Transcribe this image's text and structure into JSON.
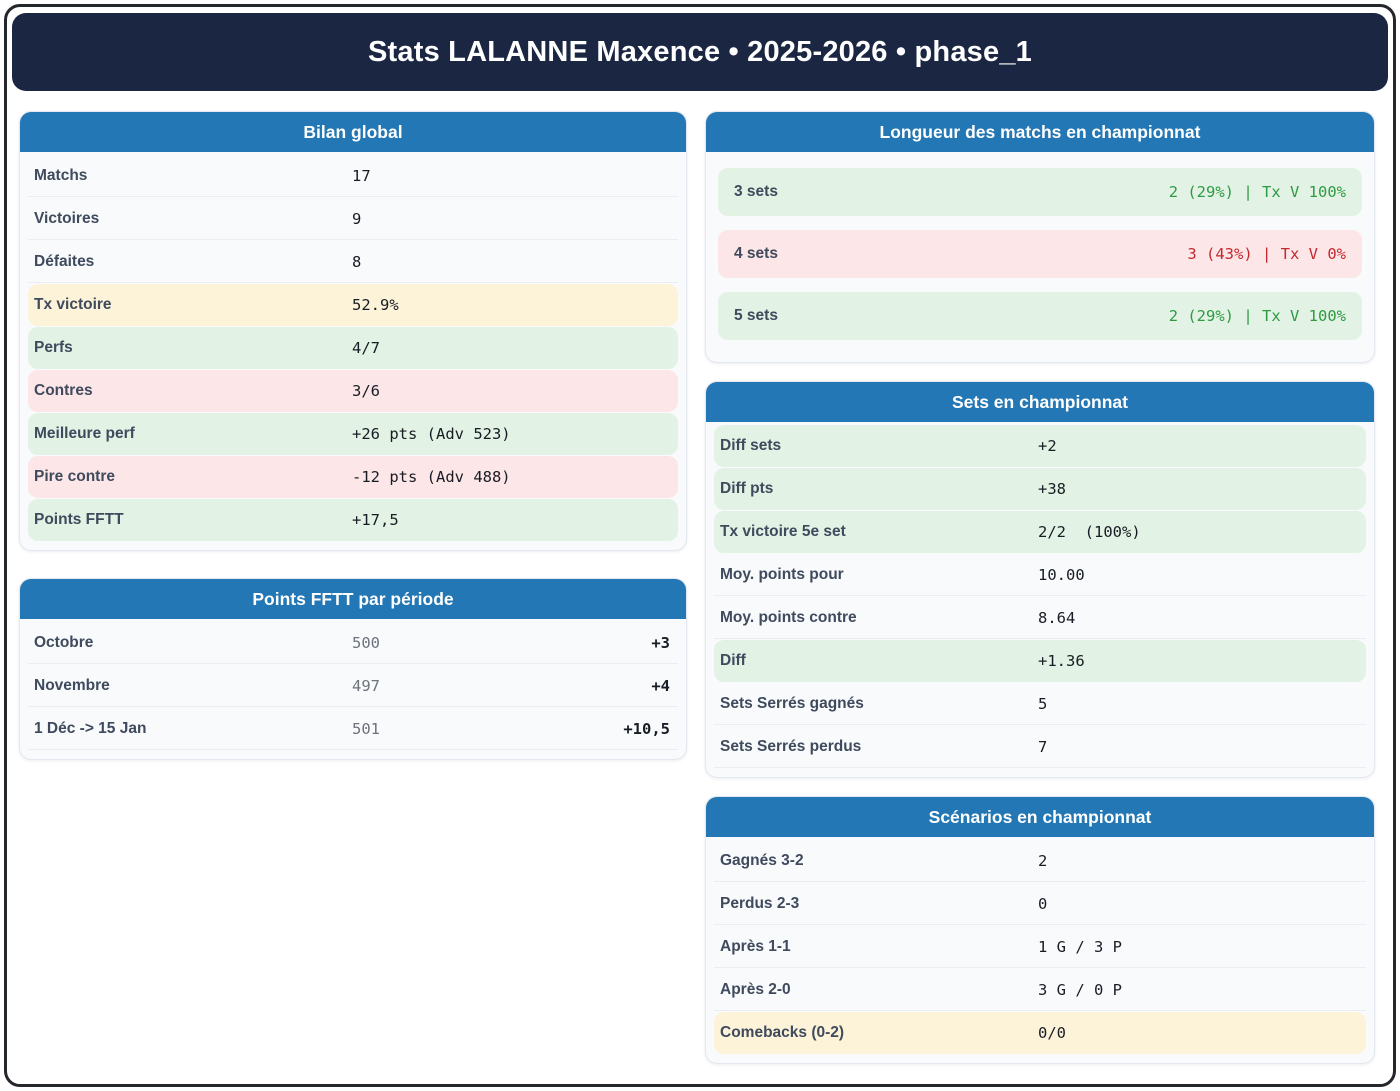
{
  "header": {
    "title": "Stats LALANNE Maxence • 2025-2026 • phase_1"
  },
  "colors": {
    "navy_header": "#1a2642",
    "card_header_blue": "#2277b4",
    "card_background": "#f8fafc",
    "positive_bg": "#e2f2e4",
    "positive_text": "#2e9b43",
    "negative_bg": "#fce6e7",
    "negative_text": "#c4292f",
    "neutral_highlight_bg": "#fdf3d9",
    "label_text": "#3f4a5d"
  },
  "cards": {
    "bilan": {
      "title": "Bilan global",
      "rows": [
        {
          "label": "Matchs",
          "value": "17",
          "tone": "plain"
        },
        {
          "label": "Victoires",
          "value": "9",
          "tone": "plain"
        },
        {
          "label": "Défaites",
          "value": "8",
          "tone": "plain"
        },
        {
          "label": "Tx victoire",
          "value": "52.9%",
          "tone": "warn"
        },
        {
          "label": "Perfs",
          "value": "4/7",
          "tone": "good"
        },
        {
          "label": "Contres",
          "value": "3/6",
          "tone": "bad"
        },
        {
          "label": "Meilleure perf",
          "value": "+26 pts (Adv 523)",
          "tone": "good"
        },
        {
          "label": "Pire contre",
          "value": "-12 pts (Adv 488)",
          "tone": "bad"
        },
        {
          "label": "Points FFTT",
          "value": "+17,5",
          "tone": "good"
        }
      ]
    },
    "periode": {
      "title": "Points FFTT par période",
      "rows": [
        {
          "label": "Octobre",
          "value": "500",
          "delta": "+3",
          "tone": "plain"
        },
        {
          "label": "Novembre",
          "value": "497",
          "delta": "+4",
          "tone": "plain"
        },
        {
          "label": "1 Déc -> 15 Jan",
          "value": "501",
          "delta": "+10,5",
          "tone": "plain"
        }
      ]
    },
    "longueur": {
      "title": "Longueur des matchs en championnat",
      "rows": [
        {
          "label": "3 sets",
          "value": "2 (29%) | Tx V 100%",
          "tone": "good"
        },
        {
          "label": "4 sets",
          "value": "3 (43%) | Tx V 0%",
          "tone": "bad"
        },
        {
          "label": "5 sets",
          "value": "2 (29%) | Tx V 100%",
          "tone": "good"
        }
      ]
    },
    "sets": {
      "title": "Sets en championnat",
      "rows": [
        {
          "label": "Diff sets",
          "value": "+2",
          "tone": "good"
        },
        {
          "label": "Diff pts",
          "value": "+38",
          "tone": "good"
        },
        {
          "label": "Tx victoire 5e set",
          "value": "2/2  (100%)",
          "tone": "good"
        },
        {
          "label": "Moy. points pour",
          "value": "10.00",
          "tone": "plain"
        },
        {
          "label": "Moy. points contre",
          "value": "8.64",
          "tone": "plain"
        },
        {
          "label": "Diff",
          "value": "+1.36",
          "tone": "good"
        },
        {
          "label": "Sets Serrés gagnés",
          "value": "5",
          "tone": "plain"
        },
        {
          "label": "Sets Serrés perdus",
          "value": "7",
          "tone": "plain"
        }
      ]
    },
    "scenarios": {
      "title": "Scénarios en championnat",
      "rows": [
        {
          "label": "Gagnés 3-2",
          "value": "2",
          "tone": "plain"
        },
        {
          "label": "Perdus 2-3",
          "value": "0",
          "tone": "plain"
        },
        {
          "label": "Après 1-1",
          "value": "1 G / 3 P",
          "tone": "plain"
        },
        {
          "label": "Après 2-0",
          "value": "3 G / 0 P",
          "tone": "plain"
        },
        {
          "label": "Comebacks (0-2)",
          "value": "0/0",
          "tone": "warn"
        }
      ]
    }
  }
}
